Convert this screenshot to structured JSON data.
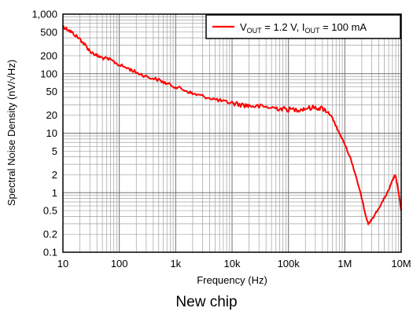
{
  "caption": "New chip",
  "chart_data": {
    "type": "line",
    "title": "",
    "xlabel": "Frequency (Hz)",
    "ylabel": "Spectral Noise Density (nV/√Hz)",
    "xscale": "log",
    "yscale": "log",
    "xlim": [
      10,
      10000000
    ],
    "ylim": [
      0.1,
      1000
    ],
    "grid": true,
    "legend_position": "top-right",
    "x_ticks": [
      {
        "value": 10,
        "label": "10"
      },
      {
        "value": 100,
        "label": "100"
      },
      {
        "value": 1000,
        "label": "1k"
      },
      {
        "value": 10000,
        "label": "10k"
      },
      {
        "value": 100000,
        "label": "100k"
      },
      {
        "value": 1000000,
        "label": "1M"
      },
      {
        "value": 10000000,
        "label": "10M"
      }
    ],
    "y_ticks": [
      {
        "value": 0.1,
        "label": "0.1"
      },
      {
        "value": 0.2,
        "label": "0.2"
      },
      {
        "value": 0.5,
        "label": "0.5"
      },
      {
        "value": 1,
        "label": "1"
      },
      {
        "value": 2,
        "label": "2"
      },
      {
        "value": 5,
        "label": "5"
      },
      {
        "value": 10,
        "label": "10"
      },
      {
        "value": 20,
        "label": "20"
      },
      {
        "value": 50,
        "label": "50"
      },
      {
        "value": 100,
        "label": "100"
      },
      {
        "value": 200,
        "label": "200"
      },
      {
        "value": 500,
        "label": "500"
      },
      {
        "value": 1000,
        "label": "1,000"
      }
    ],
    "series": [
      {
        "legend": {
          "v_main": "V",
          "v_sub": "OUT",
          "v_rest": " = 1.2 V, I",
          "i_sub": "OUT",
          "i_rest": " = 100 mA"
        },
        "color": "#ff0000",
        "points": [
          [
            10,
            620
          ],
          [
            12,
            560
          ],
          [
            15,
            480
          ],
          [
            20,
            380
          ],
          [
            25,
            300
          ],
          [
            30,
            240
          ],
          [
            40,
            200
          ],
          [
            50,
            185
          ],
          [
            70,
            170
          ],
          [
            100,
            140
          ],
          [
            150,
            120
          ],
          [
            200,
            105
          ],
          [
            300,
            90
          ],
          [
            500,
            78
          ],
          [
            700,
            68
          ],
          [
            1000,
            60
          ],
          [
            1500,
            52
          ],
          [
            2000,
            46
          ],
          [
            3000,
            42
          ],
          [
            5000,
            37
          ],
          [
            7000,
            34
          ],
          [
            10000,
            32
          ],
          [
            15000,
            30
          ],
          [
            20000,
            29
          ],
          [
            30000,
            28
          ],
          [
            50000,
            27
          ],
          [
            70000,
            26
          ],
          [
            100000,
            25
          ],
          [
            150000,
            25
          ],
          [
            200000,
            26
          ],
          [
            300000,
            27
          ],
          [
            400000,
            26
          ],
          [
            500000,
            23
          ],
          [
            600000,
            18
          ],
          [
            700000,
            13
          ],
          [
            800000,
            10
          ],
          [
            1000000,
            6.5
          ],
          [
            1300000,
            3.5
          ],
          [
            1600000,
            1.8
          ],
          [
            2000000,
            0.8
          ],
          [
            2300000,
            0.45
          ],
          [
            2600000,
            0.3
          ],
          [
            3000000,
            0.35
          ],
          [
            4000000,
            0.55
          ],
          [
            5000000,
            0.8
          ],
          [
            6000000,
            1.1
          ],
          [
            7000000,
            1.6
          ],
          [
            7800000,
            2.0
          ],
          [
            8500000,
            1.4
          ],
          [
            9300000,
            0.8
          ],
          [
            10000000,
            0.5
          ]
        ]
      }
    ]
  }
}
